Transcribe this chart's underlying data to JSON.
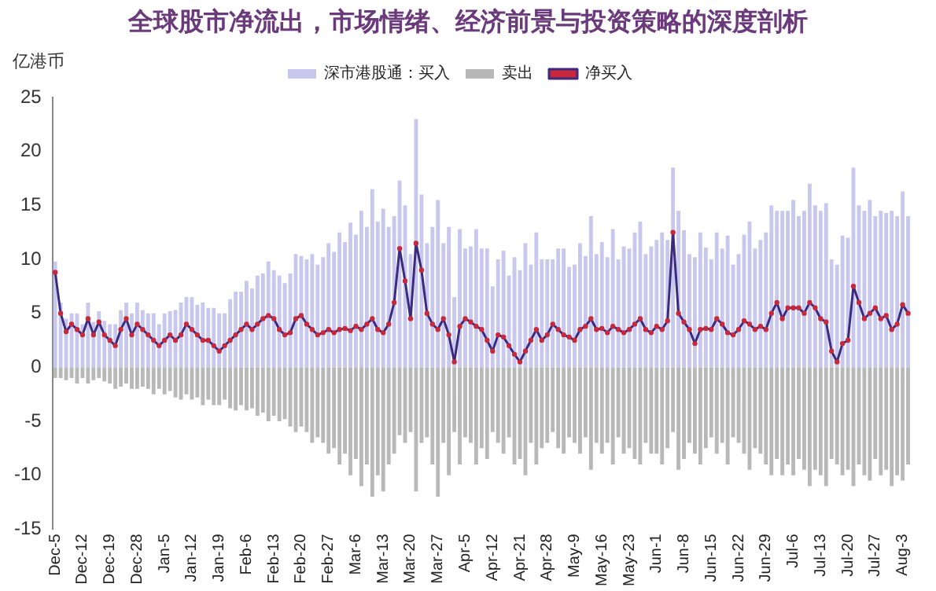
{
  "chart_data": {
    "type": "bar",
    "title": "全球股市净流出，市场情绪、经济前景与投资策略的深度剖析",
    "ylabel": "亿港币",
    "stacked": true,
    "legend": "top",
    "grid": false,
    "marker": "circle",
    "categories": [
      "Dec-5",
      null,
      null,
      null,
      null,
      "Dec-12",
      null,
      null,
      null,
      null,
      "Dec-19",
      null,
      null,
      null,
      null,
      "Dec-28",
      null,
      null,
      null,
      null,
      "Jan-5",
      null,
      null,
      null,
      null,
      "Jan-12",
      null,
      null,
      null,
      null,
      "Jan-19",
      null,
      null,
      null,
      null,
      "Feb-6",
      null,
      null,
      null,
      null,
      "Feb-13",
      null,
      null,
      null,
      null,
      "Feb-20",
      null,
      null,
      null,
      null,
      "Feb-27",
      null,
      null,
      null,
      null,
      "Mar-6",
      null,
      null,
      null,
      null,
      "Mar-13",
      null,
      null,
      null,
      null,
      "Mar-20",
      null,
      null,
      null,
      null,
      "Mar-27",
      null,
      null,
      null,
      null,
      "Apr-5",
      null,
      null,
      null,
      null,
      "Apr-12",
      null,
      null,
      null,
      null,
      "Apr-21",
      null,
      null,
      null,
      null,
      "Apr-28",
      null,
      null,
      null,
      null,
      "May-9",
      null,
      null,
      null,
      null,
      "May-16",
      null,
      null,
      null,
      null,
      "May-23",
      null,
      null,
      null,
      null,
      "Jun-1",
      null,
      null,
      null,
      null,
      "Jun-8",
      null,
      null,
      null,
      null,
      "Jun-15",
      null,
      null,
      null,
      null,
      "Jun-22",
      null,
      null,
      null,
      null,
      "Jun-29",
      null,
      null,
      null,
      null,
      "Jul-6",
      null,
      null,
      null,
      null,
      "Jul-13",
      null,
      null,
      null,
      null,
      "Jul-20",
      null,
      null,
      null,
      null,
      "Jul-27",
      null,
      null,
      null,
      null,
      "Aug-3",
      null
    ],
    "ylim": [
      -15,
      25
    ],
    "yticks": [
      -15,
      -10,
      -5,
      0,
      5,
      10,
      15,
      20,
      25
    ],
    "series": [
      {
        "name": "深市港股通：买入",
        "color": "#c8c8ee",
        "values": [
          9.8,
          6,
          4.5,
          5,
          5,
          4,
          6,
          4.2,
          5.2,
          4.3,
          4,
          4,
          5.3,
          6,
          5,
          6,
          5.3,
          5,
          5,
          4,
          5,
          5.2,
          5.3,
          6,
          6.5,
          6.5,
          5.8,
          6,
          5.5,
          5.5,
          5,
          5,
          6.3,
          7,
          7,
          8,
          7.3,
          8.5,
          8.7,
          9.8,
          9,
          8.5,
          7.8,
          8.7,
          10.5,
          10.3,
          10,
          10.5,
          9.5,
          10.2,
          11.5,
          10.7,
          12.5,
          11.6,
          13.4,
          12.3,
          14.5,
          13,
          16.5,
          13.5,
          14.7,
          13,
          14,
          17.3,
          15,
          10.5,
          23,
          16,
          11.5,
          13,
          15.5,
          11.5,
          13,
          6.5,
          12.8,
          11,
          11.2,
          12.8,
          11,
          11,
          7.5,
          10,
          10.8,
          8.5,
          10.2,
          9,
          11.5,
          9.5,
          12.5,
          10,
          10,
          10,
          11,
          11,
          9.3,
          9.5,
          11.5,
          10.3,
          14,
          10.5,
          11.6,
          10.2,
          12.8,
          10,
          11.2,
          11,
          12.5,
          13.5,
          10.5,
          11.2,
          11.8,
          12.5,
          11.8,
          18.5,
          14.5,
          12.7,
          10.5,
          10.2,
          12.5,
          11.1,
          10,
          12.5,
          11,
          12.2,
          9.5,
          10.5,
          12.3,
          13.5,
          11,
          11.8,
          12.5,
          15,
          14.5,
          14.5,
          14.5,
          15.5,
          14,
          14.5,
          17,
          15,
          14.5,
          15.2,
          10,
          9.5,
          12.2,
          12,
          18.5,
          15,
          14.5,
          15.5,
          14,
          14.5,
          14.3,
          14.5,
          14,
          16.3,
          14
        ]
      },
      {
        "name": "卖出",
        "color": "#b8b8b8",
        "values": [
          -1,
          -1,
          -1.2,
          -1,
          -1.5,
          -1,
          -1.5,
          -1.2,
          -1,
          -1.3,
          -1.5,
          -2,
          -1.8,
          -1.5,
          -2,
          -2,
          -1.8,
          -2,
          -2.5,
          -2,
          -2.5,
          -2.2,
          -2.8,
          -3,
          -2.5,
          -3,
          -2.8,
          -3.5,
          -3,
          -3.5,
          -3.5,
          -3,
          -3.8,
          -4,
          -3.5,
          -4,
          -3.8,
          -4.5,
          -4.2,
          -5,
          -4.5,
          -5,
          -4.8,
          -5.5,
          -6,
          -5.5,
          -6,
          -7,
          -6.5,
          -7,
          -8,
          -7.5,
          -9,
          -8,
          -10,
          -8.5,
          -11,
          -9,
          -12,
          -10,
          -11.5,
          -9,
          -8,
          -6.3,
          -7,
          -6,
          -11.5,
          -7,
          -6.5,
          -9,
          -12,
          -7,
          -10,
          -6,
          -9,
          -6.5,
          -7,
          -9,
          -7.5,
          -8.5,
          -6,
          -7,
          -8,
          -6.5,
          -9,
          -8.5,
          -10,
          -7,
          -9,
          -7.5,
          -7,
          -6,
          -7.5,
          -8,
          -6.5,
          -7,
          -8,
          -6.5,
          -9.5,
          -7,
          -8,
          -7,
          -9,
          -6.5,
          -8,
          -7.5,
          -8.5,
          -9,
          -7,
          -8,
          -8,
          -9,
          -7.5,
          -6,
          -9.5,
          -8.5,
          -7,
          -8,
          -9,
          -7.5,
          -6.5,
          -8,
          -7,
          -9,
          -6.5,
          -7,
          -8,
          -9.5,
          -7.5,
          -8,
          -9,
          -10,
          -8.5,
          -10,
          -9,
          -10,
          -8.5,
          -9.5,
          -11,
          -9.5,
          -10,
          -11,
          -8.5,
          -9,
          -10,
          -9.5,
          -11,
          -9,
          -10,
          -10.5,
          -8.5,
          -10,
          -9.5,
          -11,
          -10,
          -10.5,
          -9
        ]
      },
      {
        "name": "净买入",
        "type": "line",
        "color": "#3b2a7e",
        "values": [
          8.8,
          5,
          3.3,
          4,
          3.5,
          3,
          4.5,
          3,
          4.2,
          3,
          2.5,
          2,
          3.5,
          4.5,
          3,
          4,
          3.5,
          3,
          2.5,
          2,
          2.5,
          3,
          2.5,
          3,
          4,
          3.5,
          3,
          2.5,
          2.5,
          2,
          1.5,
          2,
          2.5,
          3,
          3.5,
          4,
          3.5,
          4,
          4.5,
          4.8,
          4.5,
          3.5,
          3,
          3.2,
          4.5,
          4.8,
          4,
          3.5,
          3,
          3.2,
          3.5,
          3.2,
          3.5,
          3.6,
          3.4,
          3.8,
          3.5,
          4,
          4.5,
          3.5,
          3.2,
          4,
          6,
          11,
          8,
          4.5,
          11.5,
          9,
          5,
          4,
          3.5,
          4.5,
          3,
          0.5,
          3.8,
          4.5,
          4.2,
          3.8,
          3.5,
          2.5,
          1.5,
          3,
          2.8,
          2,
          1.2,
          0.5,
          1.5,
          2.5,
          3.5,
          2.5,
          3,
          4,
          3.5,
          3,
          2.8,
          2.5,
          3.5,
          3.8,
          4.5,
          3.5,
          3.6,
          3.2,
          3.8,
          3.5,
          3.2,
          3.5,
          4,
          4.5,
          3.5,
          3.2,
          3.8,
          3.5,
          4.3,
          12.5,
          5,
          4.2,
          3.5,
          2.2,
          3.5,
          3.6,
          3.5,
          4.5,
          4,
          3.2,
          3,
          3.5,
          4.3,
          4,
          3.5,
          3.8,
          3.5,
          5,
          6,
          4.5,
          5.5,
          5.5,
          5.5,
          5,
          6,
          5.5,
          4.5,
          4.2,
          1.5,
          0.5,
          2.2,
          2.5,
          7.5,
          6,
          4.5,
          5,
          5.5,
          4.5,
          4.8,
          3.5,
          4,
          5.8,
          5
        ]
      }
    ]
  }
}
